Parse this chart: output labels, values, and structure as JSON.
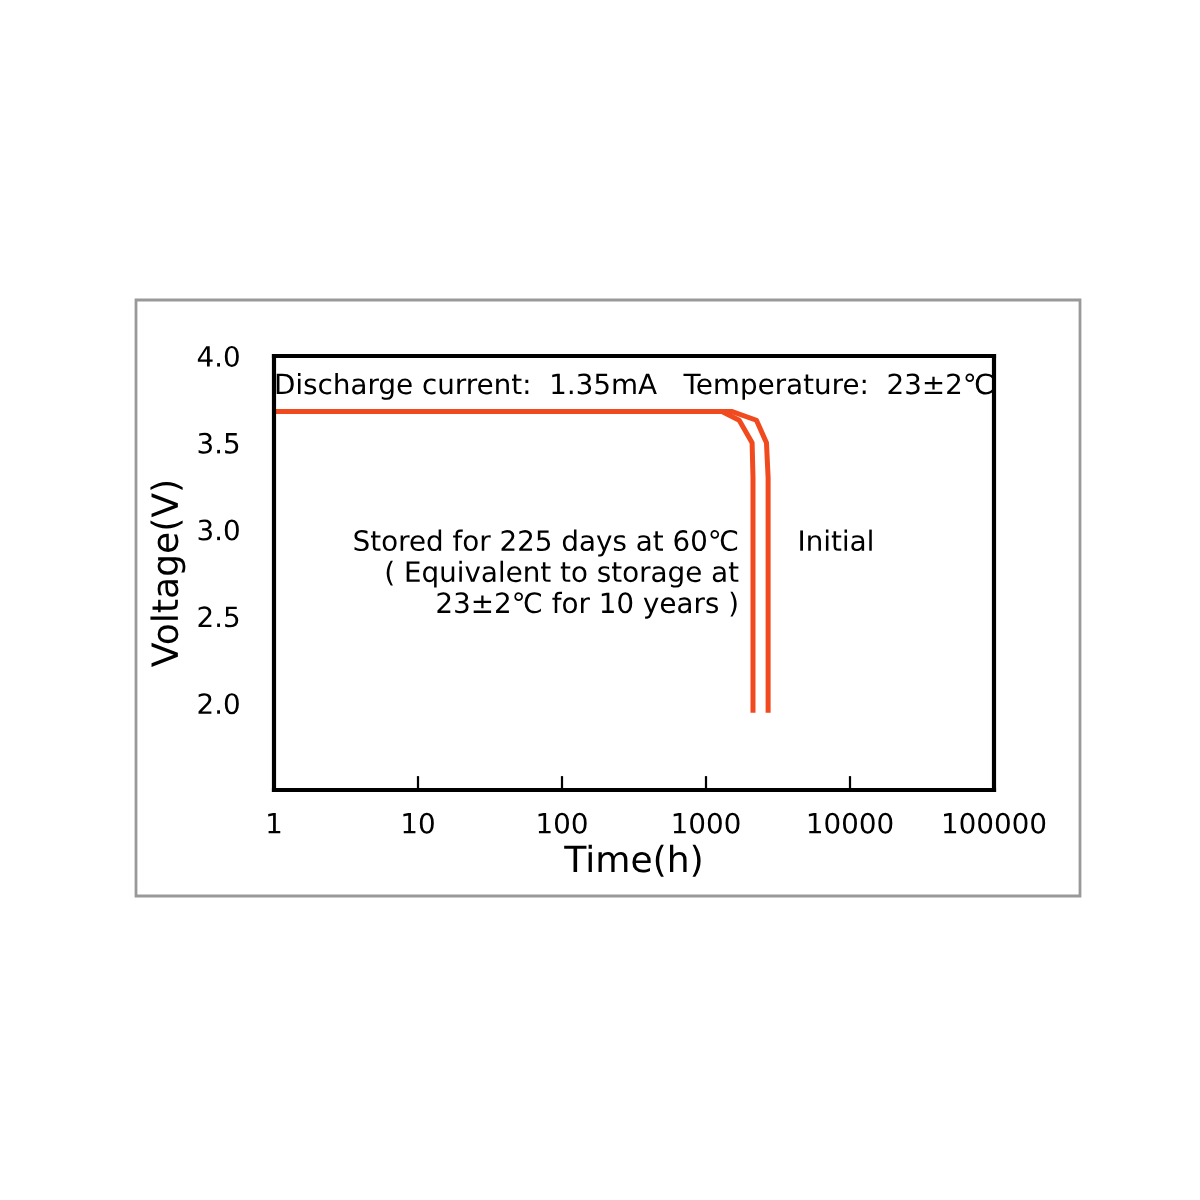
{
  "chart_data": {
    "type": "line",
    "xlabel": "Time(h)",
    "ylabel": "Voltage(V)",
    "annotations": [
      "Discharge current:  1.35mA   Temperature:  23±2℃"
    ],
    "series": [
      {
        "name": "Stored for 225 days at 60℃\n( Equivalent to storage at\n23±2℃ for 10 years )",
        "color": "#f04a1e",
        "x": [
          1,
          1290,
          1700,
          2090,
          2120,
          2120
        ],
        "values": [
          3.68,
          3.68,
          3.63,
          3.5,
          3.3,
          1.96
        ]
      },
      {
        "name": "Initial",
        "color": "#f04a1e",
        "x": [
          1,
          1520,
          2240,
          2630,
          2700,
          2700
        ],
        "values": [
          3.68,
          3.68,
          3.63,
          3.5,
          3.3,
          1.96
        ]
      }
    ],
    "log": "x",
    "xlim": [
      1,
      100000
    ],
    "xticks": [
      1,
      10,
      100,
      1000,
      10000,
      100000
    ],
    "ylim": [
      1.5,
      4.0
    ],
    "yticks": [
      {
        "value": 2.0,
        "label": "2.0"
      },
      {
        "value": 2.5,
        "label": "2.5"
      },
      {
        "value": 3.0,
        "label": "3.0"
      },
      {
        "value": 3.5,
        "label": "3.5"
      },
      {
        "value": 4.0,
        "label": "4.0"
      }
    ],
    "grid": false,
    "legend": false,
    "marker": "none",
    "line_style": "solid"
  }
}
